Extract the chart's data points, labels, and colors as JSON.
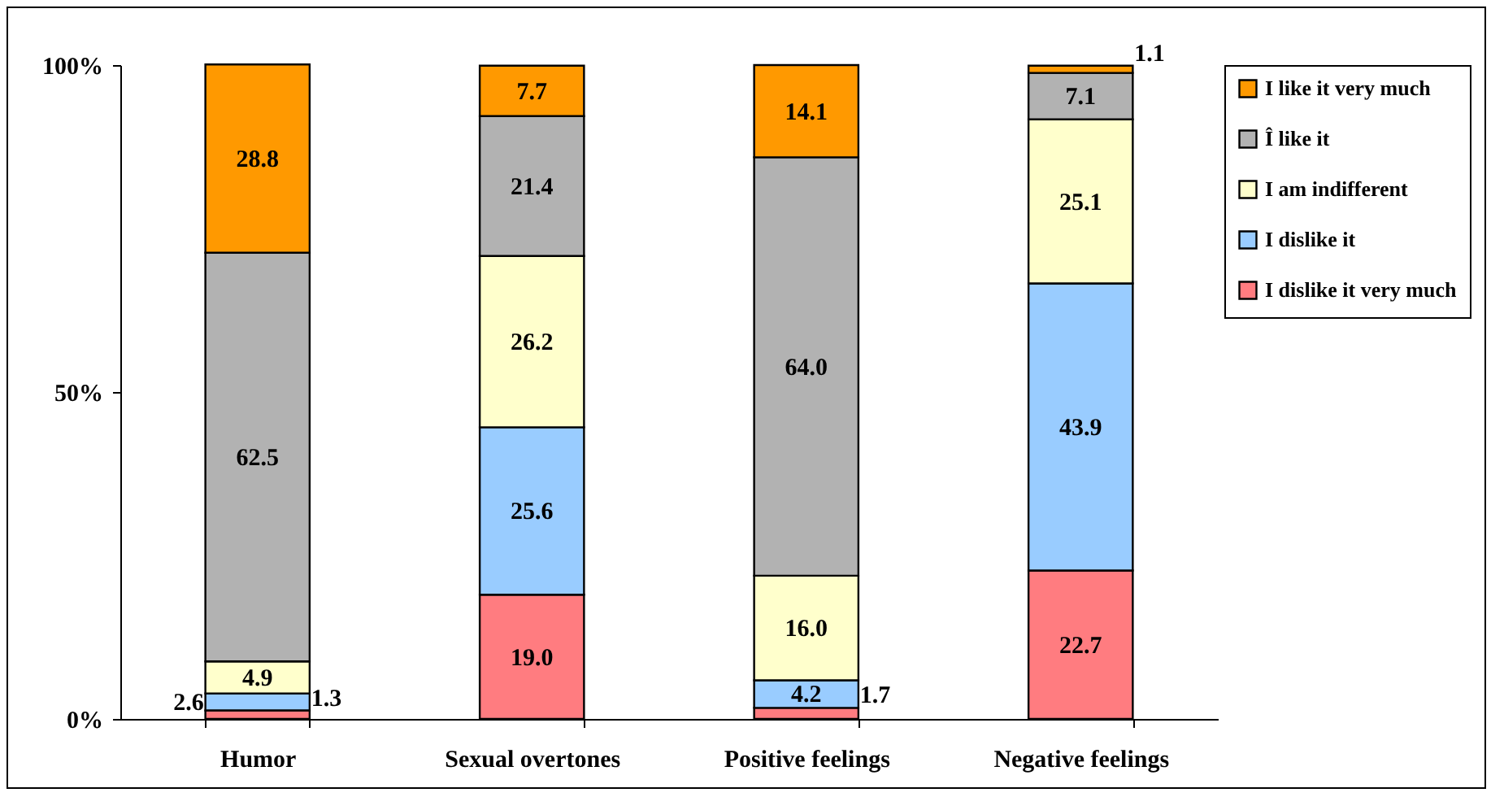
{
  "chart_data": {
    "type": "bar",
    "stacked": true,
    "categories": [
      "Humor",
      "Sexual overtones",
      "Positive feelings",
      "Negative feelings"
    ],
    "series": [
      {
        "name": "I dislike it very much",
        "color": "#ff7c80",
        "values": [
          1.3,
          19.0,
          1.7,
          22.7
        ],
        "value_labels": [
          "1.3",
          "19.0",
          "1.7",
          "22.7"
        ]
      },
      {
        "name": "I dislike it",
        "color": "#99ccff",
        "values": [
          2.6,
          25.6,
          4.2,
          43.9
        ],
        "value_labels": [
          "2.6",
          "25.6",
          "4.2",
          "43.9"
        ]
      },
      {
        "name": "I am indifferent",
        "color": "#ffffcc",
        "values": [
          4.9,
          26.2,
          16.0,
          25.1
        ],
        "value_labels": [
          "4.9",
          "26.2",
          "16.0",
          "25.1"
        ]
      },
      {
        "name": "Î like it",
        "color": "#b2b2b2",
        "values": [
          62.5,
          21.4,
          64.0,
          7.1
        ],
        "value_labels": [
          "62.5",
          "21.4",
          "64.0",
          "7.1"
        ]
      },
      {
        "name": "I like it very much",
        "color": "#ff9900",
        "values": [
          28.8,
          7.7,
          14.1,
          1.1
        ],
        "value_labels": [
          "28.8",
          "7.7",
          "14.1",
          "1.1"
        ]
      }
    ],
    "ylim": [
      0,
      100
    ],
    "yticks": [
      {
        "value": 0,
        "label": "0%"
      },
      {
        "value": 50,
        "label": "50%"
      },
      {
        "value": 100,
        "label": "100%"
      }
    ],
    "legend": "right",
    "grid": false
  }
}
